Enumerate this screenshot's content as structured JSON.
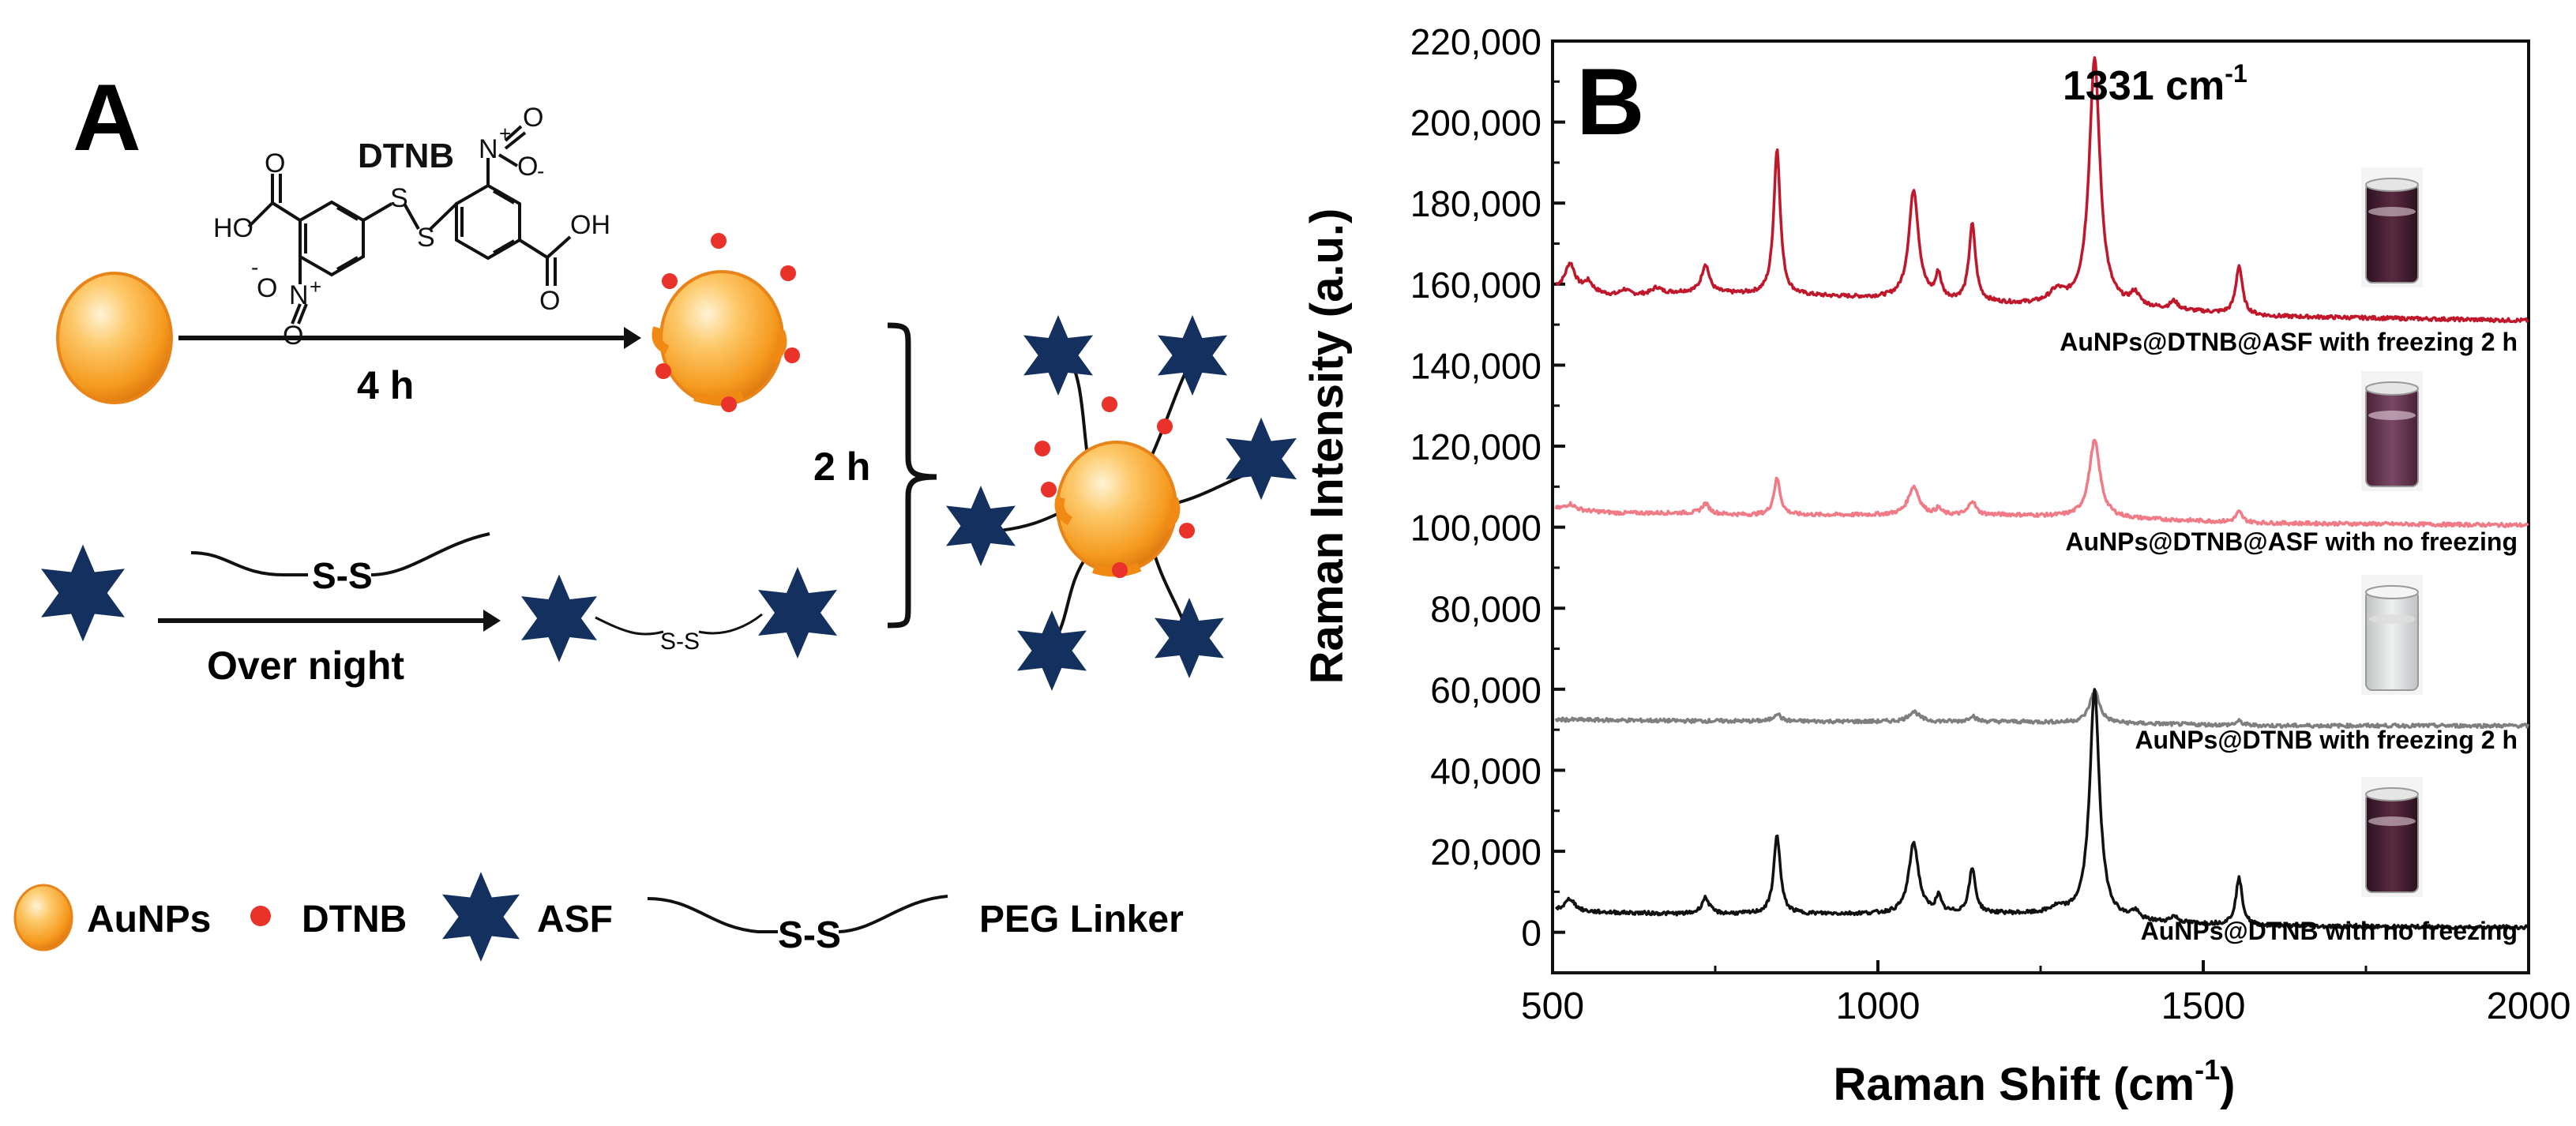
{
  "panel_a": {
    "label": "A",
    "dtnb_title": "DTNB",
    "chem": {
      "ho_left": "HO",
      "o_top_left": "O",
      "s1": "S",
      "s2": "S",
      "o_minus": "O",
      "n_plus": "N",
      "o_bottom": "O",
      "n_right": "N",
      "o_minus_right": "O",
      "o_right": "O",
      "oh_right": "OH",
      "minus_sign": "-",
      "plus_sign": "+"
    },
    "step1_time": "4 h",
    "step2_time": "2 h",
    "overnight": "Over night",
    "linker_label": "S-S",
    "legend": {
      "aunps": "AuNPs",
      "dtnb": "DTNB",
      "asf": "ASF",
      "linker_ss": "S-S",
      "peg": "PEG Linker"
    },
    "colors": {
      "gold": "#F59A1E",
      "dtnb_dot": "#E8322A",
      "star": "#14305E"
    }
  },
  "panel_b": {
    "label": "B",
    "peak_annotation": "1331 cm",
    "peak_annotation_sup": "-1",
    "trace_labels": [
      "AuNPs@DTNB@ASF with  freezing 2 h",
      "AuNPs@DTNB@ASF with no freezing",
      "AuNPs@DTNB with  freezing 2 h",
      "AuNPs@DTNB with no freezing"
    ]
  },
  "chart_data": {
    "type": "line",
    "title": "",
    "xlabel": "Raman Shift (cm",
    "xlabel_sup": "-1",
    "xlabel_end": ")",
    "ylabel": "Raman Intensity (a.u.)",
    "xlim": [
      500,
      2000
    ],
    "ylim": [
      -10000,
      220000
    ],
    "x_ticks": [
      "500",
      "1000",
      "1500",
      "2000"
    ],
    "x_tick_values": [
      500,
      1000,
      1500,
      2000
    ],
    "y_ticks": [
      "0",
      "20,000",
      "40,000",
      "60,000",
      "80,000",
      "100,000",
      "120,000",
      "140,000",
      "160,000",
      "180,000",
      "200,000",
      "220,000"
    ],
    "y_tick_values": [
      0,
      20000,
      40000,
      60000,
      80000,
      100000,
      120000,
      140000,
      160000,
      180000,
      200000,
      220000
    ],
    "series": [
      {
        "name": "AuNPs@DTNB@ASF with  freezing 2 h",
        "color": "#C0172B",
        "baseline": [
          [
            505,
            159000
          ],
          [
            600,
            157000
          ],
          [
            700,
            158000
          ],
          [
            800,
            157500
          ],
          [
            1000,
            156500
          ],
          [
            1200,
            155000
          ],
          [
            1400,
            154000
          ],
          [
            1500,
            153000
          ],
          [
            1600,
            152000
          ],
          [
            1800,
            151500
          ],
          [
            2000,
            151000
          ]
        ],
        "peaks": [
          [
            527,
            6500,
            9
          ],
          [
            555,
            2500,
            8
          ],
          [
            610,
            1500,
            8
          ],
          [
            660,
            1500,
            8
          ],
          [
            735,
            7000,
            7
          ],
          [
            845,
            36000,
            6
          ],
          [
            1055,
            27000,
            9
          ],
          [
            1093,
            6000,
            5
          ],
          [
            1145,
            19000,
            6
          ],
          [
            1275,
            3000,
            14
          ],
          [
            1333,
            61000,
            10
          ],
          [
            1395,
            3000,
            8
          ],
          [
            1455,
            2000,
            7
          ],
          [
            1555,
            12000,
            6
          ]
        ]
      },
      {
        "name": "AuNPs@DTNB@ASF with no freezing",
        "color": "#F07A86",
        "baseline": [
          [
            505,
            104500
          ],
          [
            600,
            103500
          ],
          [
            700,
            103500
          ],
          [
            800,
            103000
          ],
          [
            1000,
            103000
          ],
          [
            1200,
            103000
          ],
          [
            1400,
            102000
          ],
          [
            1500,
            101500
          ],
          [
            1600,
            101000
          ],
          [
            2000,
            100500
          ]
        ],
        "peaks": [
          [
            527,
            1500,
            9
          ],
          [
            735,
            2500,
            7
          ],
          [
            845,
            9000,
            6
          ],
          [
            1055,
            7000,
            10
          ],
          [
            1093,
            1500,
            5
          ],
          [
            1145,
            3500,
            6
          ],
          [
            1333,
            19000,
            10
          ],
          [
            1555,
            2500,
            6
          ]
        ]
      },
      {
        "name": "AuNPs@DTNB with  freezing 2 h",
        "color": "#7F7F7F",
        "baseline": [
          [
            505,
            52500
          ],
          [
            700,
            52200
          ],
          [
            1000,
            52000
          ],
          [
            1200,
            52000
          ],
          [
            1400,
            51500
          ],
          [
            1600,
            51000
          ],
          [
            2000,
            51000
          ]
        ],
        "peaks": [
          [
            845,
            2000,
            6
          ],
          [
            1055,
            2500,
            10
          ],
          [
            1145,
            1500,
            6
          ],
          [
            1333,
            8000,
            9
          ],
          [
            1555,
            1000,
            6
          ]
        ]
      },
      {
        "name": "AuNPs@DTNB with no freezing",
        "color": "#111111",
        "baseline": [
          [
            505,
            5500
          ],
          [
            550,
            5000
          ],
          [
            700,
            4500
          ],
          [
            800,
            4500
          ],
          [
            1000,
            4500
          ],
          [
            1200,
            4500
          ],
          [
            1300,
            4000
          ],
          [
            1400,
            2500
          ],
          [
            1500,
            2000
          ],
          [
            1600,
            1500
          ],
          [
            2000,
            1200
          ]
        ],
        "peaks": [
          [
            527,
            3000,
            9
          ],
          [
            735,
            4000,
            7
          ],
          [
            845,
            19500,
            6
          ],
          [
            1055,
            17500,
            9
          ],
          [
            1093,
            4000,
            5
          ],
          [
            1145,
            11000,
            6
          ],
          [
            1275,
            1500,
            14
          ],
          [
            1333,
            56000,
            9
          ],
          [
            1395,
            2000,
            8
          ],
          [
            1455,
            1500,
            7
          ],
          [
            1555,
            11500,
            6
          ]
        ]
      }
    ]
  }
}
